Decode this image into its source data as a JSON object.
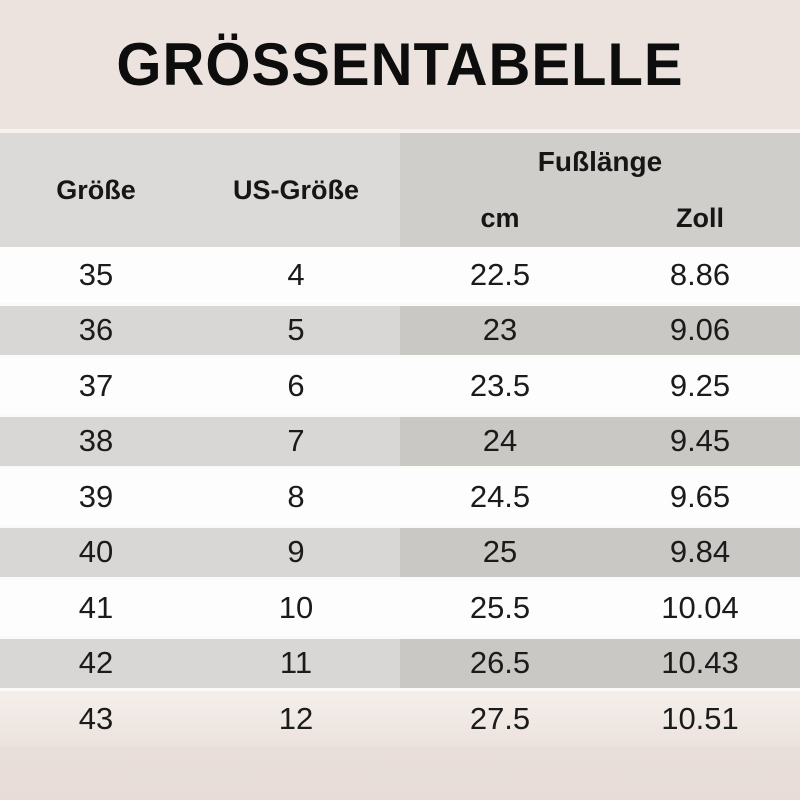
{
  "title": "GRÖSSENTABELLE",
  "header": {
    "size": "Größe",
    "us_size": "US-Größe",
    "foot_length": "Fußlänge",
    "cm": "cm",
    "zoll": "Zoll"
  },
  "rows": [
    {
      "groesse": "35",
      "us": "4",
      "cm": "22.5",
      "zoll": "8.86"
    },
    {
      "groesse": "36",
      "us": "5",
      "cm": "23",
      "zoll": "9.06"
    },
    {
      "groesse": "37",
      "us": "6",
      "cm": "23.5",
      "zoll": "9.25"
    },
    {
      "groesse": "38",
      "us": "7",
      "cm": "24",
      "zoll": "9.45"
    },
    {
      "groesse": "39",
      "us": "8",
      "cm": "24.5",
      "zoll": "9.65"
    },
    {
      "groesse": "40",
      "us": "9",
      "cm": "25",
      "zoll": "9.84"
    },
    {
      "groesse": "41",
      "us": "10",
      "cm": "25.5",
      "zoll": "10.04"
    },
    {
      "groesse": "42",
      "us": "11",
      "cm": "26.5",
      "zoll": "10.43"
    },
    {
      "groesse": "43",
      "us": "12",
      "cm": "27.5",
      "zoll": "10.51"
    }
  ],
  "colors": {
    "page_bg": "#ece3de",
    "header_left_bg": "#dbdad8",
    "header_right_bg": "#d0cecb",
    "stripe_left_bg": "#d8d7d5",
    "stripe_right_bg": "#cac8c5",
    "white_row_bg": "#fdfdfd",
    "text": "#1b1b1b"
  },
  "chart_data": {
    "type": "table",
    "title": "GRÖSSENTABELLE",
    "column_groups": [
      {
        "label": "Fußlänge",
        "columns": [
          "cm",
          "Zoll"
        ]
      }
    ],
    "columns": [
      "Größe",
      "US-Größe",
      "cm",
      "Zoll"
    ],
    "rows": [
      [
        35,
        4,
        22.5,
        8.86
      ],
      [
        36,
        5,
        23,
        9.06
      ],
      [
        37,
        6,
        23.5,
        9.25
      ],
      [
        38,
        7,
        24,
        9.45
      ],
      [
        39,
        8,
        24.5,
        9.65
      ],
      [
        40,
        9,
        25,
        9.84
      ],
      [
        41,
        10,
        25.5,
        10.04
      ],
      [
        42,
        11,
        26.5,
        10.43
      ],
      [
        43,
        12,
        27.5,
        10.51
      ]
    ]
  }
}
